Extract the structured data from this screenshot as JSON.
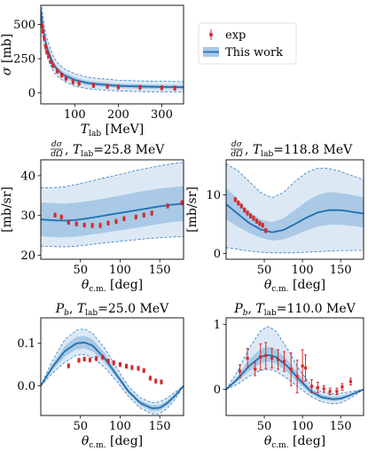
{
  "colors": {
    "band_outer": "#dce9f5",
    "band_inner": "#a9c9e6",
    "band_edge": "#2f7bbf",
    "central": "#1f6fb4",
    "exp": "#d62728",
    "axis": "#000000"
  },
  "legend": {
    "exp_label": "exp",
    "model_label": "This work"
  },
  "chart_data": [
    {
      "id": "total",
      "type": "line",
      "title": "",
      "xlabel": "T_lab [MeV]",
      "ylabel": "σ [mb]",
      "xlim": [
        22,
        350
      ],
      "ylim": [
        -80,
        640
      ],
      "xticks": [
        100,
        200,
        300
      ],
      "yticks": [
        0,
        250,
        500
      ],
      "grid": false,
      "legend_position": "outside-right",
      "series": [
        {
          "name": "This work",
          "x": [
            22,
            25,
            30,
            35,
            40,
            50,
            60,
            75,
            100,
            125,
            150,
            200,
            250,
            300,
            350
          ],
          "values": [
            605,
            520,
            420,
            345,
            295,
            215,
            170,
            130,
            95,
            75,
            65,
            52,
            47,
            44,
            42
          ],
          "band_inner_lo": [
            565,
            480,
            385,
            315,
            265,
            190,
            148,
            110,
            75,
            57,
            48,
            36,
            31,
            28,
            27
          ],
          "band_inner_hi": [
            645,
            560,
            455,
            375,
            325,
            240,
            192,
            150,
            115,
            93,
            82,
            68,
            63,
            60,
            58
          ],
          "band_outer_lo": [
            520,
            440,
            345,
            280,
            232,
            162,
            122,
            85,
            50,
            33,
            24,
            14,
            10,
            8,
            7
          ],
          "band_outer_hi": [
            690,
            600,
            495,
            410,
            360,
            270,
            220,
            178,
            140,
            118,
            107,
            93,
            88,
            85,
            82
          ]
        },
        {
          "name": "exp",
          "type": "scatter",
          "x": [
            25,
            27,
            30,
            33,
            36,
            40,
            45,
            50,
            60,
            70,
            80,
            96,
            110,
            143,
            175,
            200,
            250,
            300,
            330
          ],
          "values": [
            490,
            450,
            400,
            340,
            300,
            270,
            230,
            200,
            160,
            130,
            105,
            80,
            70,
            55,
            48,
            43,
            40,
            37,
            35
          ]
        }
      ]
    },
    {
      "id": "dcs25",
      "type": "line",
      "title_tex": "dσ/dΩ",
      "title_tail": ", T_lab=25.8 MeV",
      "xlabel": "θ_c.m. [deg]",
      "ylabel": "[mb/sr]",
      "xlim": [
        0,
        180
      ],
      "ylim": [
        19,
        44
      ],
      "xticks": [
        50,
        100,
        150
      ],
      "yticks": [
        20,
        30,
        40
      ],
      "series": [
        {
          "name": "This work",
          "x": [
            0,
            15,
            30,
            45,
            60,
            75,
            90,
            105,
            120,
            135,
            150,
            165,
            180
          ],
          "values": [
            29.0,
            28.8,
            28.7,
            28.9,
            29.3,
            29.8,
            30.3,
            30.8,
            31.3,
            31.8,
            32.3,
            32.7,
            33.0
          ],
          "band_inner_lo": [
            24.8,
            24.6,
            24.5,
            24.7,
            25.1,
            25.5,
            26.0,
            26.4,
            26.9,
            27.4,
            27.9,
            28.3,
            28.6
          ],
          "band_inner_hi": [
            33.3,
            33.1,
            33.0,
            33.2,
            33.6,
            34.1,
            34.6,
            35.2,
            35.8,
            36.3,
            36.8,
            37.1,
            37.4
          ],
          "band_outer_lo": [
            22.3,
            22.2,
            22.1,
            22.3,
            22.6,
            23.0,
            23.3,
            23.6,
            23.9,
            24.2,
            24.4,
            24.6,
            24.7
          ],
          "band_outer_hi": [
            37.0,
            37.0,
            37.2,
            37.8,
            38.5,
            39.2,
            39.9,
            40.6,
            41.3,
            41.9,
            42.5,
            43.0,
            43.4
          ]
        },
        {
          "name": "exp",
          "type": "scatter",
          "x": [
            18,
            26,
            35,
            45,
            55,
            65,
            75,
            85,
            95,
            105,
            120,
            130,
            140,
            160,
            178
          ],
          "values": [
            30.1,
            29.6,
            28.3,
            27.9,
            27.6,
            27.5,
            27.5,
            28.1,
            28.5,
            29.2,
            29.6,
            30.1,
            30.6,
            32.4,
            33.2
          ]
        }
      ]
    },
    {
      "id": "dcs118",
      "type": "line",
      "title_tex": "dσ/dΩ",
      "title_tail": ", T_lab=118.8 MeV",
      "xlabel": "θ_c.m. [deg]",
      "ylabel": "[mb/sr]",
      "xlim": [
        0,
        180
      ],
      "ylim": [
        -1,
        16
      ],
      "xticks": [
        50,
        100,
        150
      ],
      "yticks": [
        0,
        10
      ],
      "series": [
        {
          "name": "This work",
          "x": [
            0,
            15,
            30,
            45,
            60,
            75,
            90,
            105,
            120,
            135,
            150,
            165,
            180
          ],
          "values": [
            8.4,
            6.8,
            5.2,
            4.1,
            3.6,
            4.0,
            5.0,
            6.1,
            7.0,
            7.4,
            7.4,
            7.1,
            6.8
          ],
          "band_inner_lo": [
            5.8,
            4.6,
            3.5,
            2.7,
            2.2,
            2.4,
            3.1,
            3.9,
            4.6,
            4.9,
            4.9,
            4.7,
            4.4
          ],
          "band_inner_hi": [
            11.2,
            9.3,
            7.2,
            5.8,
            5.3,
            6.0,
            7.4,
            8.9,
            10.0,
            10.5,
            10.3,
            10.0,
            9.6
          ],
          "band_outer_lo": [
            1.0,
            0.7,
            0.4,
            0.2,
            0.1,
            0.1,
            0.1,
            0.2,
            0.3,
            0.4,
            0.5,
            0.5,
            0.5
          ],
          "band_outer_hi": [
            15.3,
            14.2,
            12.3,
            10.4,
            9.5,
            10.4,
            12.3,
            13.8,
            14.6,
            14.5,
            14.0,
            13.3,
            12.6
          ]
        },
        {
          "name": "exp",
          "type": "scatter",
          "x": [
            12,
            16,
            20,
            24,
            28,
            32,
            36,
            40,
            44,
            48,
            52
          ],
          "values": [
            9.2,
            8.6,
            8.1,
            7.4,
            6.9,
            6.4,
            6.0,
            5.5,
            5.1,
            4.8,
            3.9
          ]
        }
      ]
    },
    {
      "id": "pb25",
      "type": "line",
      "title_sym": "P_b",
      "title_tail": ", T_lab=25.0 MeV",
      "xlabel": "θ_c.m. [deg]",
      "ylabel": "",
      "xlim": [
        0,
        180
      ],
      "ylim": [
        -0.07,
        0.16
      ],
      "xticks": [
        50,
        100,
        150
      ],
      "yticks": [
        0.0,
        0.1
      ],
      "ytick_labels": [
        "0.0",
        "0.1"
      ],
      "series": [
        {
          "name": "This work",
          "x": [
            0,
            15,
            30,
            45,
            55,
            65,
            80,
            95,
            110,
            125,
            140,
            150,
            160,
            170,
            180
          ],
          "values": [
            0.0,
            0.045,
            0.081,
            0.1,
            0.102,
            0.095,
            0.066,
            0.027,
            -0.012,
            -0.04,
            -0.053,
            -0.052,
            -0.04,
            -0.022,
            0.0
          ],
          "band_inner_lo": [
            0.0,
            0.037,
            0.068,
            0.086,
            0.088,
            0.081,
            0.056,
            0.02,
            -0.018,
            -0.046,
            -0.06,
            -0.059,
            -0.046,
            -0.026,
            0.0
          ],
          "band_inner_hi": [
            0.0,
            0.052,
            0.094,
            0.115,
            0.118,
            0.11,
            0.078,
            0.035,
            -0.006,
            -0.034,
            -0.046,
            -0.045,
            -0.034,
            -0.018,
            0.0
          ],
          "band_outer_lo": [
            0.0,
            0.03,
            0.055,
            0.072,
            0.074,
            0.067,
            0.044,
            0.012,
            -0.024,
            -0.052,
            -0.066,
            -0.066,
            -0.052,
            -0.03,
            0.0
          ],
          "band_outer_hi": [
            0.0,
            0.06,
            0.108,
            0.131,
            0.134,
            0.124,
            0.09,
            0.044,
            0.0,
            -0.028,
            -0.04,
            -0.038,
            -0.028,
            -0.014,
            0.0
          ]
        },
        {
          "name": "exp",
          "type": "scatter",
          "x": [
            35,
            48,
            55,
            62,
            70,
            78,
            85,
            92,
            100,
            108,
            115,
            123,
            130,
            138,
            145,
            152
          ],
          "values": [
            0.047,
            0.06,
            0.063,
            0.061,
            0.064,
            0.067,
            0.058,
            0.054,
            0.05,
            0.046,
            0.043,
            0.041,
            0.036,
            0.018,
            0.011,
            0.009
          ]
        }
      ]
    },
    {
      "id": "pb110",
      "type": "line",
      "title_sym": "P_b",
      "title_tail": ", T_lab=110.0 MeV",
      "xlabel": "θ_c.m. [deg]",
      "ylabel": "",
      "xlim": [
        0,
        180
      ],
      "ylim": [
        -0.4,
        1.1
      ],
      "xticks": [
        50,
        100,
        150
      ],
      "yticks": [
        0,
        1
      ],
      "series": [
        {
          "name": "This work",
          "x": [
            0,
            15,
            30,
            45,
            55,
            65,
            80,
            95,
            110,
            125,
            140,
            150,
            160,
            170,
            180
          ],
          "values": [
            0.0,
            0.16,
            0.36,
            0.5,
            0.53,
            0.5,
            0.36,
            0.16,
            -0.02,
            -0.12,
            -0.15,
            -0.14,
            -0.1,
            -0.05,
            0.0
          ],
          "band_inner_lo": [
            0.0,
            0.12,
            0.28,
            0.4,
            0.43,
            0.4,
            0.27,
            0.1,
            -0.06,
            -0.15,
            -0.18,
            -0.17,
            -0.12,
            -0.06,
            0.0
          ],
          "band_inner_hi": [
            0.0,
            0.21,
            0.46,
            0.62,
            0.66,
            0.62,
            0.46,
            0.23,
            0.03,
            -0.08,
            -0.11,
            -0.1,
            -0.07,
            -0.03,
            0.0
          ],
          "band_outer_lo": [
            0.0,
            0.08,
            0.2,
            0.29,
            0.31,
            0.28,
            0.17,
            0.03,
            -0.1,
            -0.19,
            -0.22,
            -0.21,
            -0.15,
            -0.08,
            0.0
          ],
          "band_outer_hi": [
            0.0,
            0.28,
            0.63,
            0.9,
            0.97,
            0.9,
            0.63,
            0.32,
            0.08,
            -0.04,
            -0.07,
            -0.06,
            -0.04,
            -0.02,
            0.0
          ],
          "dashed_outer": true
        },
        {
          "name": "exp",
          "type": "scatter",
          "x": [
            18,
            28,
            38,
            45,
            52,
            60,
            68,
            76,
            85,
            93,
            100,
            104,
            112,
            120,
            128,
            136,
            145,
            152,
            163
          ],
          "values": [
            0.28,
            0.48,
            0.31,
            0.5,
            0.52,
            0.48,
            0.46,
            0.43,
            0.31,
            0.2,
            0.36,
            0.33,
            0.05,
            0.03,
            0.01,
            -0.03,
            -0.03,
            0.04,
            0.12
          ],
          "errors": [
            0.1,
            0.15,
            0.1,
            0.2,
            0.2,
            0.15,
            0.15,
            0.15,
            0.25,
            0.25,
            0.25,
            0.2,
            0.1,
            0.08,
            0.05,
            0.05,
            0.05,
            0.05,
            0.05
          ]
        }
      ]
    }
  ]
}
